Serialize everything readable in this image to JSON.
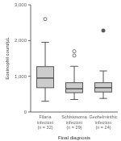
{
  "chart_data": {
    "type": "box",
    "xlabel": "Final diagnosis",
    "ylabel": "Eosinophil count/μL",
    "categories": [
      "Filaria\ninfection\n(n = 32)",
      "Schistosoma\ninfection\n(n = 29)",
      "Geohelminthic\ninfection\n(n = 24)"
    ],
    "boxes": [
      {
        "q1": 680,
        "median": 950,
        "q3": 1270,
        "whisker_low": 300,
        "whisker_high": 1950,
        "outliers": [
          2600
        ],
        "extreme_outliers": []
      },
      {
        "q1": 540,
        "median": 650,
        "q3": 820,
        "whisker_low": 350,
        "whisker_high": 1280,
        "outliers": [
          1580,
          1700
        ],
        "extreme_outliers": []
      },
      {
        "q1": 560,
        "median": 680,
        "q3": 820,
        "whisker_low": 380,
        "whisker_high": 1150,
        "outliers": [],
        "extreme_outliers": [
          2280
        ]
      }
    ],
    "color": "#555555",
    "ylim": [
      0,
      3000
    ],
    "yticks": [
      0,
      {
        "value": 1000,
        "label": "1,000"
      },
      {
        "value": 2000,
        "label": "2,000"
      },
      {
        "value": 3000,
        "label": "3,000"
      }
    ]
  }
}
